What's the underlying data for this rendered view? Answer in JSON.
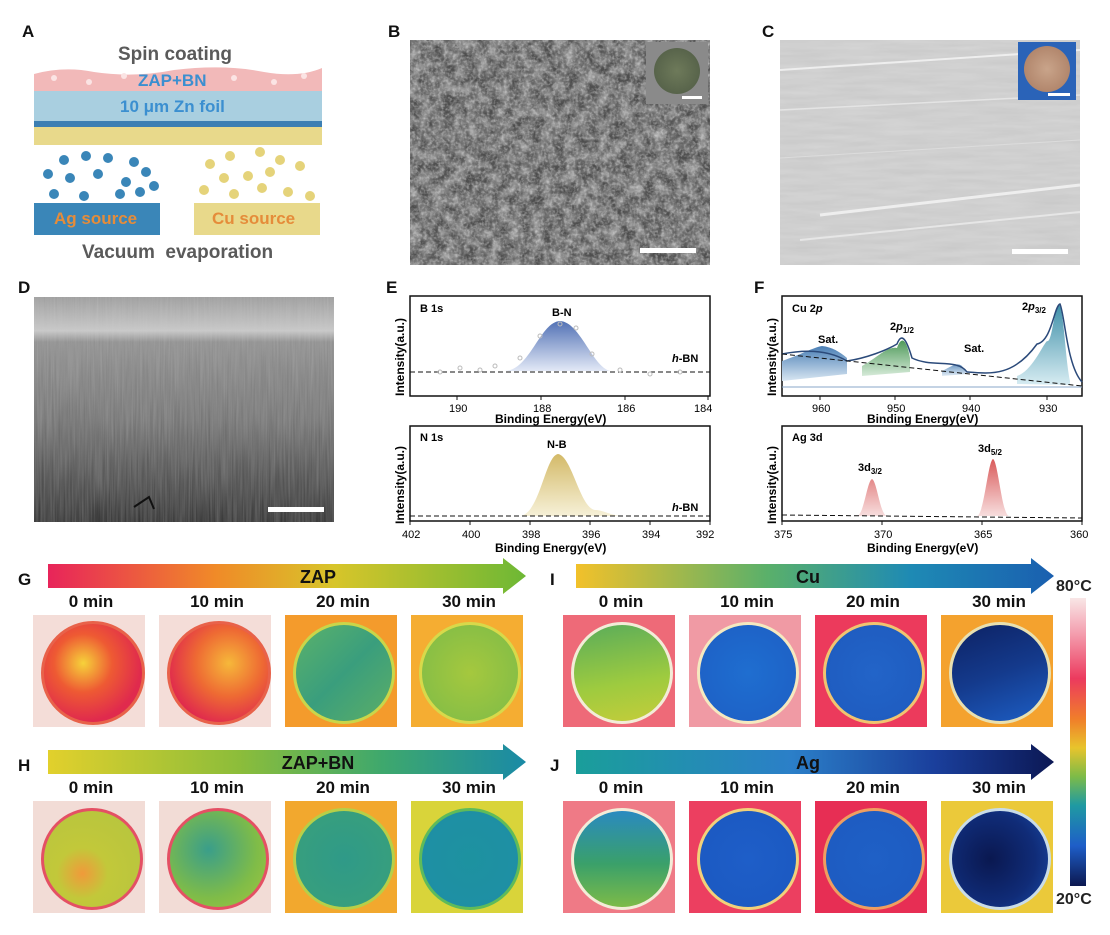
{
  "panels": {
    "A": {
      "label": "A",
      "top_text": "Spin coating",
      "layer1": "ZAP+BN",
      "layer2": "10 μm Zn foil",
      "left_source": "Ag source",
      "right_source": "Cu source",
      "bottom_text": "Vacuum  evaporation",
      "colors": {
        "coating": "#f2b9b9",
        "zn": "#a9cfe0",
        "blue_line": "#3c7fb3",
        "gold": "#e8d98b",
        "ag_dot": "#3a86b8",
        "cu_dot": "#e5d37a",
        "ag_text": "#e58c3a",
        "cu_text": "#e58c3a",
        "label_blue": "#3b8fd0"
      }
    },
    "B": {
      "label": "B"
    },
    "C": {
      "label": "C"
    },
    "D": {
      "label": "D"
    },
    "E": {
      "label": "E",
      "top": {
        "element": "B 1s",
        "peak": "B-N",
        "ref_pre": "h",
        "ref_post": "-BN",
        "xlabel": "Binding Energy(eV)",
        "ylabel": "Intensity(a.u.)",
        "ticks": [
          "190",
          "188",
          "186",
          "184"
        ]
      },
      "bottom": {
        "element": "N 1s",
        "peak": "N-B",
        "ref_pre": "h",
        "ref_post": "-BN",
        "xlabel": "Binding Energy(eV)",
        "ylabel": "Intensity(a.u.)",
        "ticks": [
          "402",
          "400",
          "398",
          "396",
          "394",
          "392"
        ]
      }
    },
    "F": {
      "label": "F",
      "top": {
        "element_pre": "Cu 2",
        "element_it": "p",
        "sat1": "Sat.",
        "sat2": "Sat.",
        "p12_pre": "2",
        "p12_it": "p",
        "p12_sub": "1/2",
        "p32_pre": "2",
        "p32_it": "p",
        "p32_sub": "3/2",
        "xlabel": "Binding Energy(eV)",
        "ylabel": "Intensity(a.u.)",
        "ticks": [
          "960",
          "950",
          "940",
          "930"
        ]
      },
      "bottom": {
        "element": "Ag 3d",
        "d32_pre": "3d",
        "d32_sub": "3/2",
        "d52_pre": "3d",
        "d52_sub": "5/2",
        "xlabel": "Binding Energy(eV)",
        "ylabel": "Intensity(a.u.)",
        "ticks": [
          "375",
          "370",
          "365",
          "360"
        ]
      }
    },
    "thermal": {
      "G": {
        "label": "G",
        "arrow": "ZAP",
        "times": [
          "0 min",
          "10 min",
          "20 min",
          "30 min"
        ]
      },
      "H": {
        "label": "H",
        "arrow": "ZAP+BN",
        "times": [
          "0 min",
          "10 min",
          "20 min",
          "30 min"
        ]
      },
      "I": {
        "label": "I",
        "arrow": "Cu",
        "times": [
          "0 min",
          "10 min",
          "20 min",
          "30 min"
        ]
      },
      "J": {
        "label": "J",
        "arrow": "Ag",
        "times": [
          "0 min",
          "10 min",
          "20 min",
          "30 min"
        ]
      }
    },
    "colorbar": {
      "max": "80°C",
      "min": "20°C"
    }
  }
}
